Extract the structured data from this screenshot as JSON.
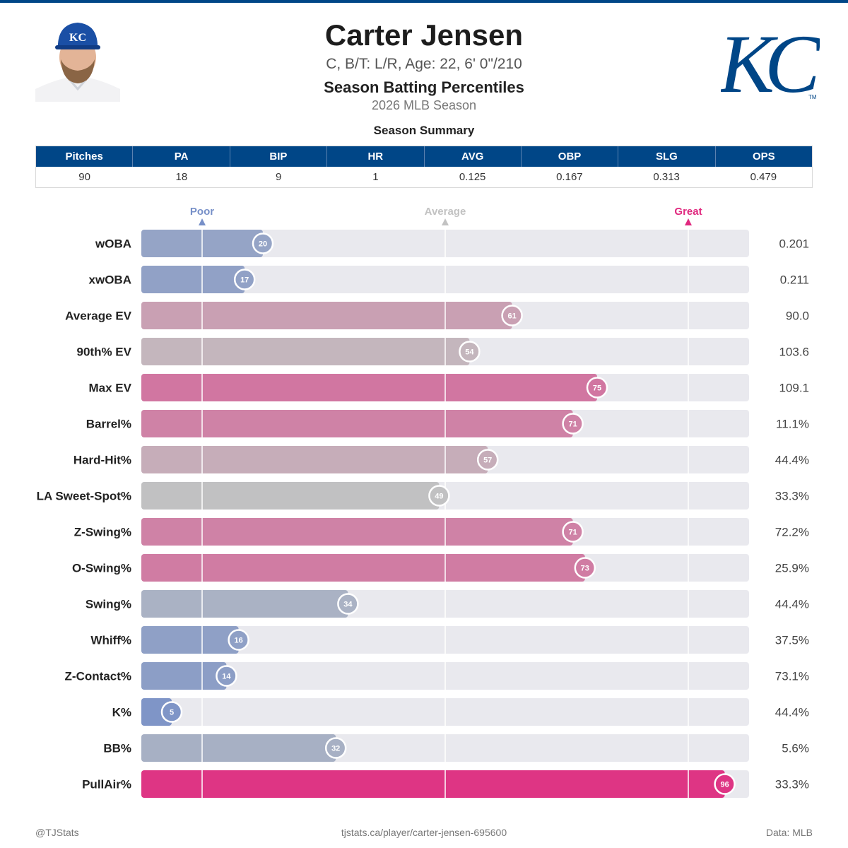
{
  "colors": {
    "primary": "#004687",
    "poor": "#7790c8",
    "average": "#c2c2c2",
    "great": "#e0297f",
    "track": "#e9e9ee"
  },
  "header": {
    "name": "Carter Jensen",
    "bio": "C, B/T: L/R, Age: 22, 6' 0\"/210",
    "title": "Season Batting Percentiles",
    "subtitle": "2026 MLB Season",
    "headshot_icon": "player-headshot",
    "logo_icon": "kc-royals-logo"
  },
  "summary": {
    "title": "Season Summary",
    "headers": [
      "Pitches",
      "PA",
      "BIP",
      "HR",
      "AVG",
      "OBP",
      "SLG",
      "OPS"
    ],
    "values": [
      "90",
      "18",
      "9",
      "1",
      "0.125",
      "0.167",
      "0.313",
      "0.479"
    ]
  },
  "chart_data": {
    "type": "bar",
    "orientation": "horizontal",
    "xlim": [
      0,
      100
    ],
    "reference_lines": [
      {
        "label": "Poor",
        "value": 10
      },
      {
        "label": "Average",
        "value": 50
      },
      {
        "label": "Great",
        "value": 90
      }
    ],
    "categories": [
      "wOBA",
      "xwOBA",
      "Average EV",
      "90th% EV",
      "Max EV",
      "Barrel%",
      "Hard-Hit%",
      "LA Sweet-Spot%",
      "Z-Swing%",
      "O-Swing%",
      "Swing%",
      "Whiff%",
      "Z-Contact%",
      "K%",
      "BB%",
      "PullAir%"
    ],
    "percentiles": [
      20,
      17,
      61,
      54,
      75,
      71,
      57,
      49,
      71,
      73,
      34,
      16,
      14,
      5,
      32,
      96
    ],
    "stat_values": [
      "0.201",
      "0.211",
      "90.0",
      "103.6",
      "109.1",
      "11.1%",
      "44.4%",
      "33.3%",
      "72.2%",
      "25.9%",
      "44.4%",
      "37.5%",
      "73.1%",
      "44.4%",
      "5.6%",
      "33.3%"
    ]
  },
  "footer": {
    "left": "@TJStats",
    "center": "tjstats.ca/player/carter-jensen-695600",
    "right": "Data: MLB"
  }
}
